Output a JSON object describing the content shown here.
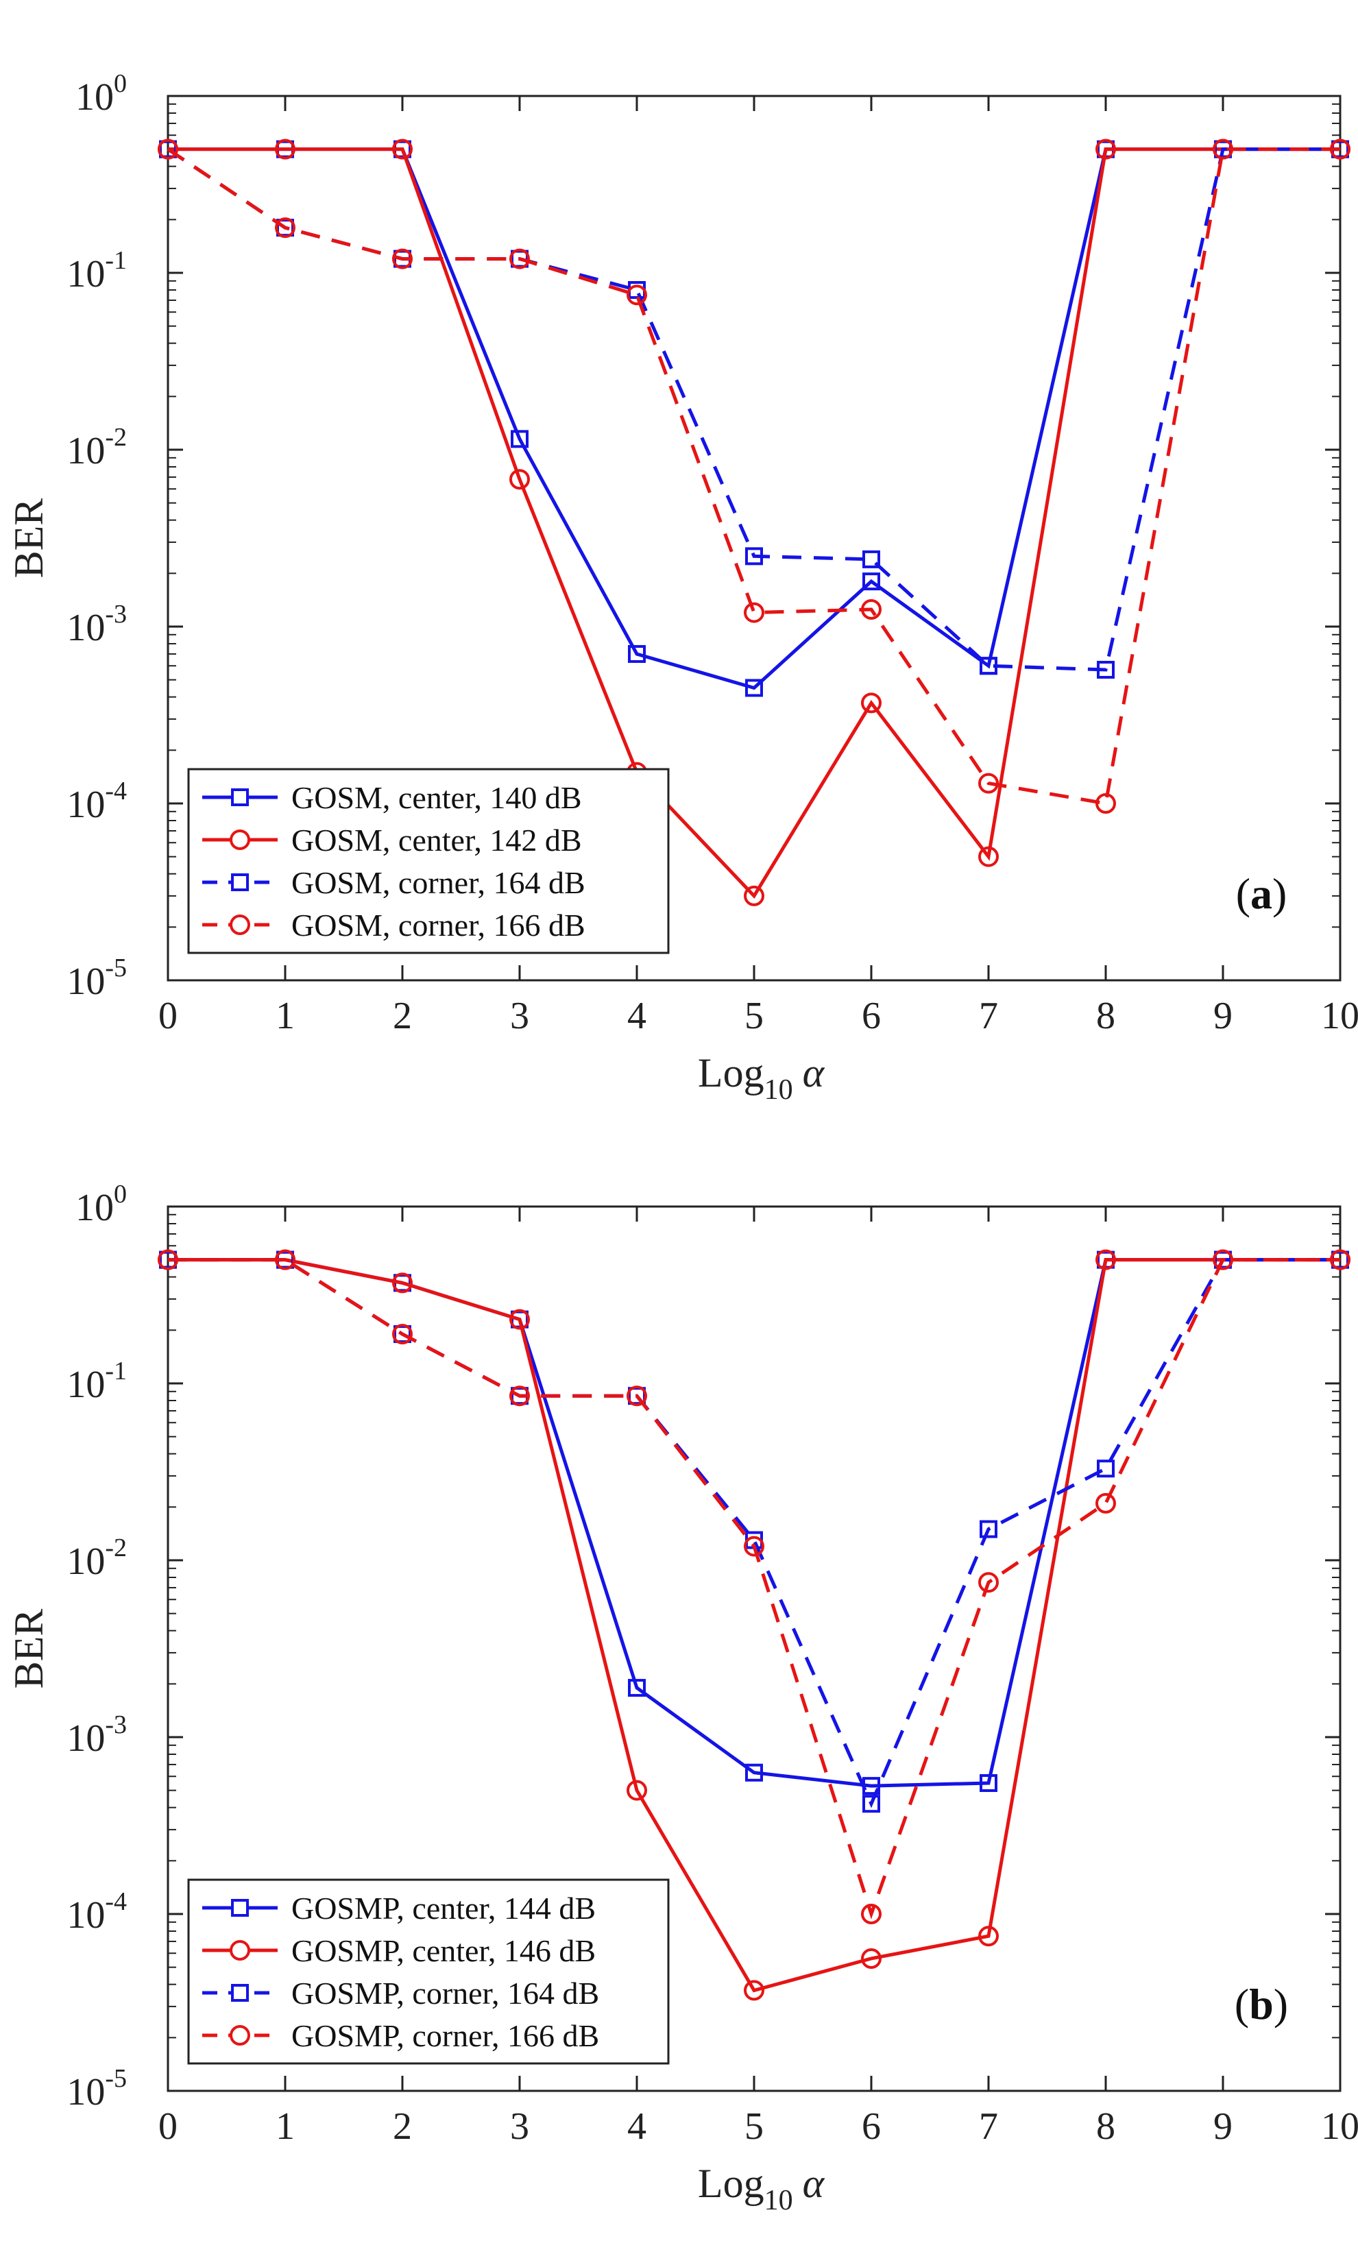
{
  "colors": {
    "blue": "#1414e6",
    "red": "#e61414",
    "axis": "#222222"
  },
  "chart_data": [
    {
      "type": "line",
      "panel_label": "a",
      "xlabel_base": "Log",
      "xlabel_sub": "10",
      "xlabel_var": "α",
      "ylabel": "BER",
      "xlim": [
        0,
        10
      ],
      "ylim": [
        1e-05,
        1
      ],
      "yscale": "log",
      "xticks": [
        "0",
        "1",
        "2",
        "3",
        "4",
        "5",
        "6",
        "7",
        "8",
        "9",
        "10"
      ],
      "yticks": [
        {
          "base": "10",
          "exp": "0",
          "value": 1
        },
        {
          "base": "10",
          "exp": "-1",
          "value": 0.1
        },
        {
          "base": "10",
          "exp": "-2",
          "value": 0.01
        },
        {
          "base": "10",
          "exp": "-3",
          "value": 0.001
        },
        {
          "base": "10",
          "exp": "-4",
          "value": 0.0001
        },
        {
          "base": "10",
          "exp": "-5",
          "value": 1e-05
        }
      ],
      "legend_position": "bottom-left",
      "series": [
        {
          "name": "GOSM, center, 140 dB",
          "color": "blue",
          "dash": "solid",
          "marker": "square",
          "x": [
            0,
            1,
            2,
            3,
            4,
            5,
            6,
            7,
            8,
            9,
            10
          ],
          "y": [
            0.5,
            0.5,
            0.5,
            0.0115,
            0.0007,
            0.00045,
            0.0018,
            0.0006,
            0.5,
            0.5,
            0.5
          ]
        },
        {
          "name": "GOSM, center, 142 dB",
          "color": "red",
          "dash": "solid",
          "marker": "circle",
          "x": [
            0,
            1,
            2,
            3,
            4,
            5,
            6,
            7,
            8,
            9,
            10
          ],
          "y": [
            0.5,
            0.5,
            0.5,
            0.0068,
            0.00015,
            3e-05,
            0.00037,
            5e-05,
            0.5,
            0.5,
            0.5
          ]
        },
        {
          "name": "GOSM, corner, 164 dB",
          "color": "blue",
          "dash": "dashed",
          "marker": "square",
          "x": [
            0,
            1,
            2,
            3,
            4,
            5,
            6,
            7,
            8,
            9,
            10
          ],
          "y": [
            0.5,
            0.18,
            0.12,
            0.12,
            0.08,
            0.0025,
            0.0024,
            0.0006,
            0.00057,
            0.5,
            0.5
          ]
        },
        {
          "name": "GOSM, corner, 166 dB",
          "color": "red",
          "dash": "dashed",
          "marker": "circle",
          "x": [
            0,
            1,
            2,
            3,
            4,
            5,
            6,
            7,
            8,
            9,
            10
          ],
          "y": [
            0.5,
            0.18,
            0.12,
            0.12,
            0.075,
            0.0012,
            0.00125,
            0.00013,
            0.0001,
            0.5,
            0.5
          ]
        }
      ]
    },
    {
      "type": "line",
      "panel_label": "b",
      "xlabel_base": "Log",
      "xlabel_sub": "10",
      "xlabel_var": "α",
      "ylabel": "BER",
      "xlim": [
        0,
        10
      ],
      "ylim": [
        1e-05,
        1
      ],
      "yscale": "log",
      "xticks": [
        "0",
        "1",
        "2",
        "3",
        "4",
        "5",
        "6",
        "7",
        "8",
        "9",
        "10"
      ],
      "yticks": [
        {
          "base": "10",
          "exp": "0",
          "value": 1
        },
        {
          "base": "10",
          "exp": "-1",
          "value": 0.1
        },
        {
          "base": "10",
          "exp": "-2",
          "value": 0.01
        },
        {
          "base": "10",
          "exp": "-3",
          "value": 0.001
        },
        {
          "base": "10",
          "exp": "-4",
          "value": 0.0001
        },
        {
          "base": "10",
          "exp": "-5",
          "value": 1e-05
        }
      ],
      "legend_position": "bottom-left",
      "series": [
        {
          "name": "GOSMP, center, 144 dB",
          "color": "blue",
          "dash": "solid",
          "marker": "square",
          "x": [
            0,
            1,
            2,
            3,
            4,
            5,
            6,
            7,
            8,
            9,
            10
          ],
          "y": [
            0.5,
            0.5,
            0.37,
            0.23,
            0.0019,
            0.00063,
            0.00053,
            0.00055,
            0.5,
            0.5,
            0.5
          ]
        },
        {
          "name": "GOSMP, center, 146 dB",
          "color": "red",
          "dash": "solid",
          "marker": "circle",
          "x": [
            0,
            1,
            2,
            3,
            4,
            5,
            6,
            7,
            8,
            9,
            10
          ],
          "y": [
            0.5,
            0.5,
            0.37,
            0.23,
            0.0005,
            3.7e-05,
            5.6e-05,
            7.5e-05,
            0.5,
            0.5,
            0.5
          ]
        },
        {
          "name": "GOSMP, corner, 164 dB",
          "color": "blue",
          "dash": "dashed",
          "marker": "square",
          "x": [
            0,
            1,
            2,
            3,
            4,
            5,
            6,
            7,
            8,
            9,
            10
          ],
          "y": [
            0.5,
            0.5,
            0.19,
            0.085,
            0.085,
            0.013,
            0.00042,
            0.015,
            0.033,
            0.5,
            0.5
          ]
        },
        {
          "name": "GOSMP, corner, 166 dB",
          "color": "red",
          "dash": "dashed",
          "marker": "circle",
          "x": [
            0,
            1,
            2,
            3,
            4,
            5,
            6,
            7,
            8,
            9,
            10
          ],
          "y": [
            0.5,
            0.5,
            0.19,
            0.085,
            0.085,
            0.012,
            0.0001,
            0.0075,
            0.021,
            0.5,
            0.5
          ]
        }
      ]
    }
  ]
}
